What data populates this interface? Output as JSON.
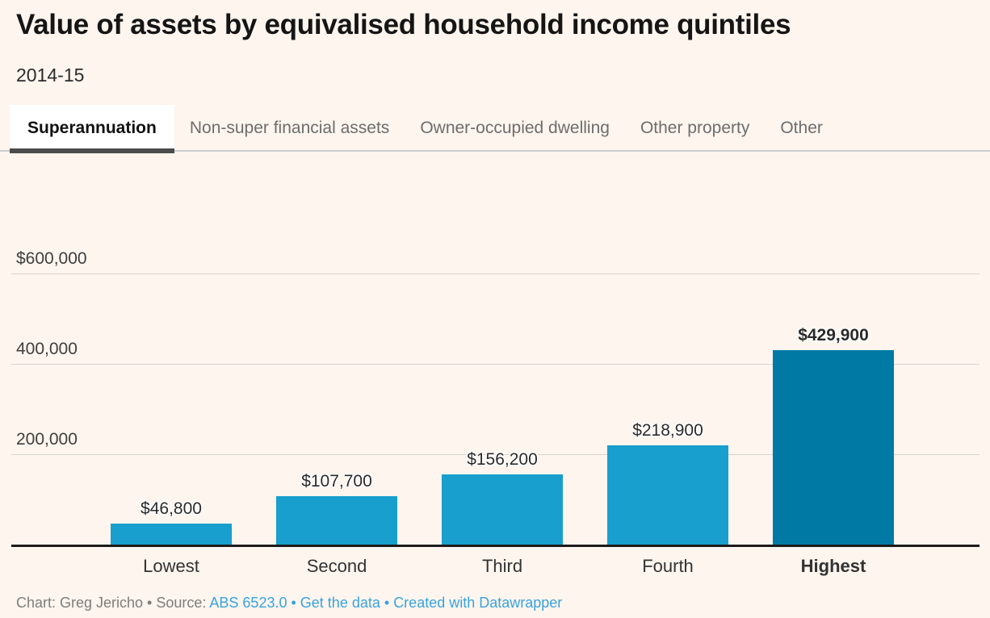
{
  "header": {
    "title": "Value of assets by equivalised household income quintiles",
    "subtitle": "2014-15"
  },
  "tabs": [
    {
      "label": "Superannuation",
      "active": true
    },
    {
      "label": "Non-super financial assets",
      "active": false
    },
    {
      "label": "Owner-occupied dwelling",
      "active": false
    },
    {
      "label": "Other property",
      "active": false
    },
    {
      "label": "Other",
      "active": false
    }
  ],
  "chart_data": {
    "type": "bar",
    "title": "Value of assets by equivalised household income quintiles",
    "subtitle": "2014-15",
    "active_series": "Superannuation",
    "categories": [
      "Lowest",
      "Second",
      "Third",
      "Fourth",
      "Highest"
    ],
    "values": [
      46800,
      107700,
      156200,
      218900,
      429900
    ],
    "value_labels": [
      "$46,800",
      "$107,700",
      "$156,200",
      "$218,900",
      "$429,900"
    ],
    "highlight_index": 4,
    "yticks": [
      {
        "label": "$600,000",
        "value": 600000
      },
      {
        "label": "400,000",
        "value": 400000
      },
      {
        "label": "200,000",
        "value": 200000
      }
    ],
    "ylim": [
      0,
      640000
    ],
    "grid": true,
    "legend": "none",
    "xlabel": "",
    "ylabel": "",
    "bar_color": "#189fcd",
    "highlight_color": "#0179a5"
  },
  "footer": {
    "parts": [
      {
        "text": "Chart: Greg Jericho • Source: ",
        "style": "muted",
        "link": false
      },
      {
        "text": "ABS 6523.0",
        "style": "link",
        "link": true
      },
      {
        "text": " • ",
        "style": "link",
        "link": false
      },
      {
        "text": "Get the data",
        "style": "link",
        "link": true
      },
      {
        "text": " • ",
        "style": "link",
        "link": false
      },
      {
        "text": "Created with Datawrapper",
        "style": "link",
        "link": true
      }
    ]
  },
  "colors": {
    "background": "#fdf5ee",
    "bar": "#189fcd",
    "bar_highlight": "#0179a5",
    "gridline": "#d9d4ce",
    "baseline": "#1c1c1c",
    "footer_link": "#39a3dc",
    "active_tab_underline": "#4c4c4c"
  }
}
